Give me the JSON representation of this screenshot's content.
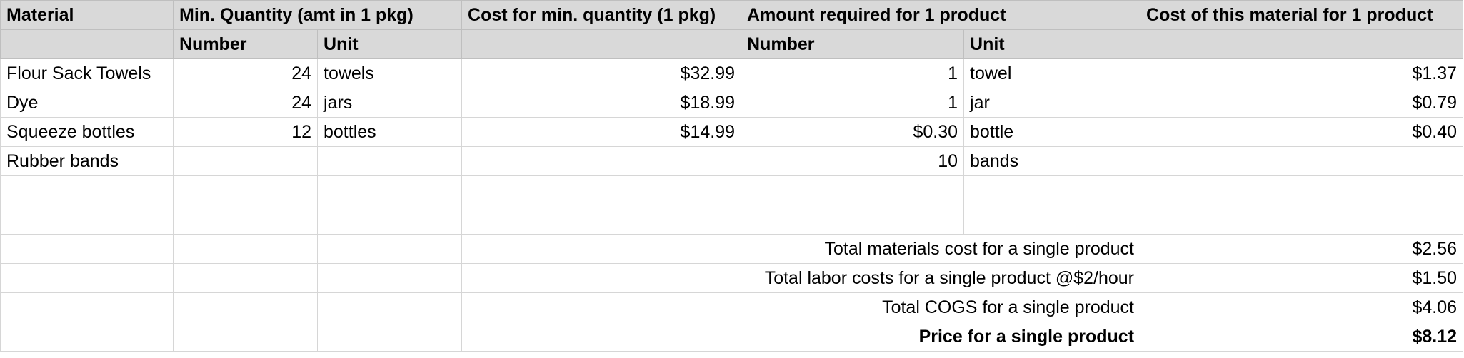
{
  "header_row_1": {
    "material": "Material",
    "min_quantity": "Min. Quantity (amt in 1 pkg)",
    "cost_min_quantity": "Cost for min. quantity (1 pkg)",
    "amount_required": "Amount required for 1 product",
    "cost_material": "Cost of this material for 1 product"
  },
  "header_row_2": {
    "number_1": "Number",
    "unit_1": "Unit",
    "number_2": "Number",
    "unit_2": "Unit"
  },
  "rows": [
    {
      "material": "Flour Sack Towels",
      "pkg_number": "24",
      "pkg_unit": "towels",
      "pkg_cost": "$32.99",
      "req_number": "1",
      "req_unit": "towel",
      "cost_per_product": "$1.37"
    },
    {
      "material": "Dye",
      "pkg_number": "24",
      "pkg_unit": "jars",
      "pkg_cost": "$18.99",
      "req_number": "1",
      "req_unit": "jar",
      "cost_per_product": "$0.79"
    },
    {
      "material": "Squeeze bottles",
      "pkg_number": "12",
      "pkg_unit": "bottles",
      "pkg_cost": "$14.99",
      "req_number": "$0.30",
      "req_unit": "bottle",
      "cost_per_product": "$0.40"
    },
    {
      "material": "Rubber bands",
      "pkg_number": "",
      "pkg_unit": "",
      "pkg_cost": "",
      "req_number": "10",
      "req_unit": "bands",
      "cost_per_product": ""
    }
  ],
  "summary": [
    {
      "label": "Total materials cost for a single product",
      "value": "$2.56"
    },
    {
      "label": "Total labor costs for a single product @$2/hour",
      "value": "$1.50"
    },
    {
      "label": "Total COGS for a single product",
      "value": "$4.06"
    },
    {
      "label": "Price for a single product",
      "value": "$8.12"
    }
  ]
}
